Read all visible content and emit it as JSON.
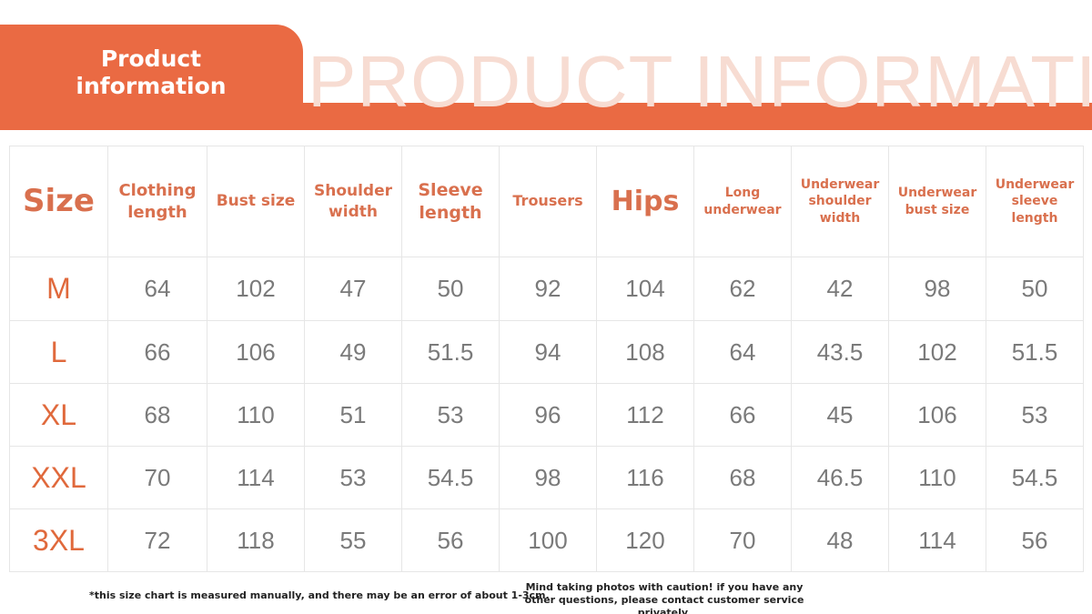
{
  "header": {
    "label": "Product information",
    "banner": "PRODUCT INFORMATION"
  },
  "table": {
    "columns": [
      "Size",
      "Clothing length",
      "Bust size",
      "Shoulder width",
      "Sleeve length",
      "Trousers",
      "Hips",
      "Long underwear",
      "Underwear shoulder width",
      "Underwear bust size",
      "Underwear sleeve length"
    ],
    "rows": [
      [
        "M",
        "64",
        "102",
        "47",
        "50",
        "92",
        "104",
        "62",
        "42",
        "98",
        "50"
      ],
      [
        "L",
        "66",
        "106",
        "49",
        "51.5",
        "94",
        "108",
        "64",
        "43.5",
        "102",
        "51.5"
      ],
      [
        "XL",
        "68",
        "110",
        "51",
        "53",
        "96",
        "112",
        "66",
        "45",
        "106",
        "53"
      ],
      [
        "XXL",
        "70",
        "114",
        "53",
        "54.5",
        "98",
        "116",
        "68",
        "46.5",
        "110",
        "54.5"
      ],
      [
        "3XL",
        "72",
        "118",
        "55",
        "56",
        "100",
        "120",
        "70",
        "48",
        "114",
        "56"
      ]
    ]
  },
  "notes": {
    "left": "*this size chart is measured manually, and there may be an error of about 1-3cm.",
    "right": "Mind taking photos with caution! if you have any other questions, please contact customer service privately."
  }
}
